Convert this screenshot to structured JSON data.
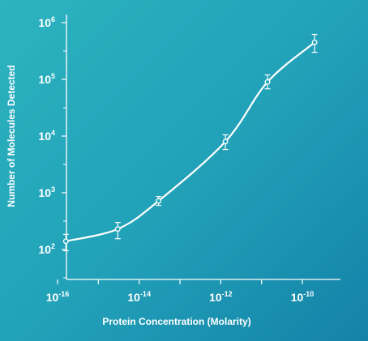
{
  "chart_data": {
    "type": "line",
    "title": "",
    "xlabel": "Protein Concentration (Molarity)",
    "ylabel": "Number of Molecules Detected",
    "x_scale": "log",
    "y_scale": "log",
    "xlim": [
      1e-16,
      1e-09
    ],
    "ylim": [
      50,
      1000000.0
    ],
    "x_ticks": [
      {
        "base": "10",
        "exp": "-16",
        "value": 1e-16
      },
      {
        "base": "10",
        "exp": "-14",
        "value": 1e-14
      },
      {
        "base": "10",
        "exp": "-12",
        "value": 1e-12
      },
      {
        "base": "10",
        "exp": "-10",
        "value": 1e-10
      }
    ],
    "y_ticks": [
      {
        "base": "10",
        "exp": "2",
        "value": 100
      },
      {
        "base": "10",
        "exp": "3",
        "value": 1000
      },
      {
        "base": "10",
        "exp": "4",
        "value": 10000
      },
      {
        "base": "10",
        "exp": "5",
        "value": 100000
      },
      {
        "base": "10",
        "exp": "6",
        "value": 1000000
      }
    ],
    "grid": false,
    "legend": "none",
    "series": [
      {
        "points": [
          {
            "x": 1.6e-16,
            "y": 140,
            "err_low": 95,
            "err_high": 185
          },
          {
            "x": 3e-15,
            "y": 230,
            "err_low": 155,
            "err_high": 300
          },
          {
            "x": 3e-14,
            "y": 720,
            "err_low": 600,
            "err_high": 860
          },
          {
            "x": 1.3e-12,
            "y": 8000,
            "err_low": 5800,
            "err_high": 10500
          },
          {
            "x": 1.4e-11,
            "y": 90000,
            "err_low": 68000,
            "err_high": 120000
          },
          {
            "x": 2e-10,
            "y": 450000,
            "err_low": 300000,
            "err_high": 620000
          }
        ]
      }
    ],
    "colors": {
      "line": "#ffffff",
      "marker_fill": "#27a9bc",
      "axis": "#ffffff"
    }
  }
}
